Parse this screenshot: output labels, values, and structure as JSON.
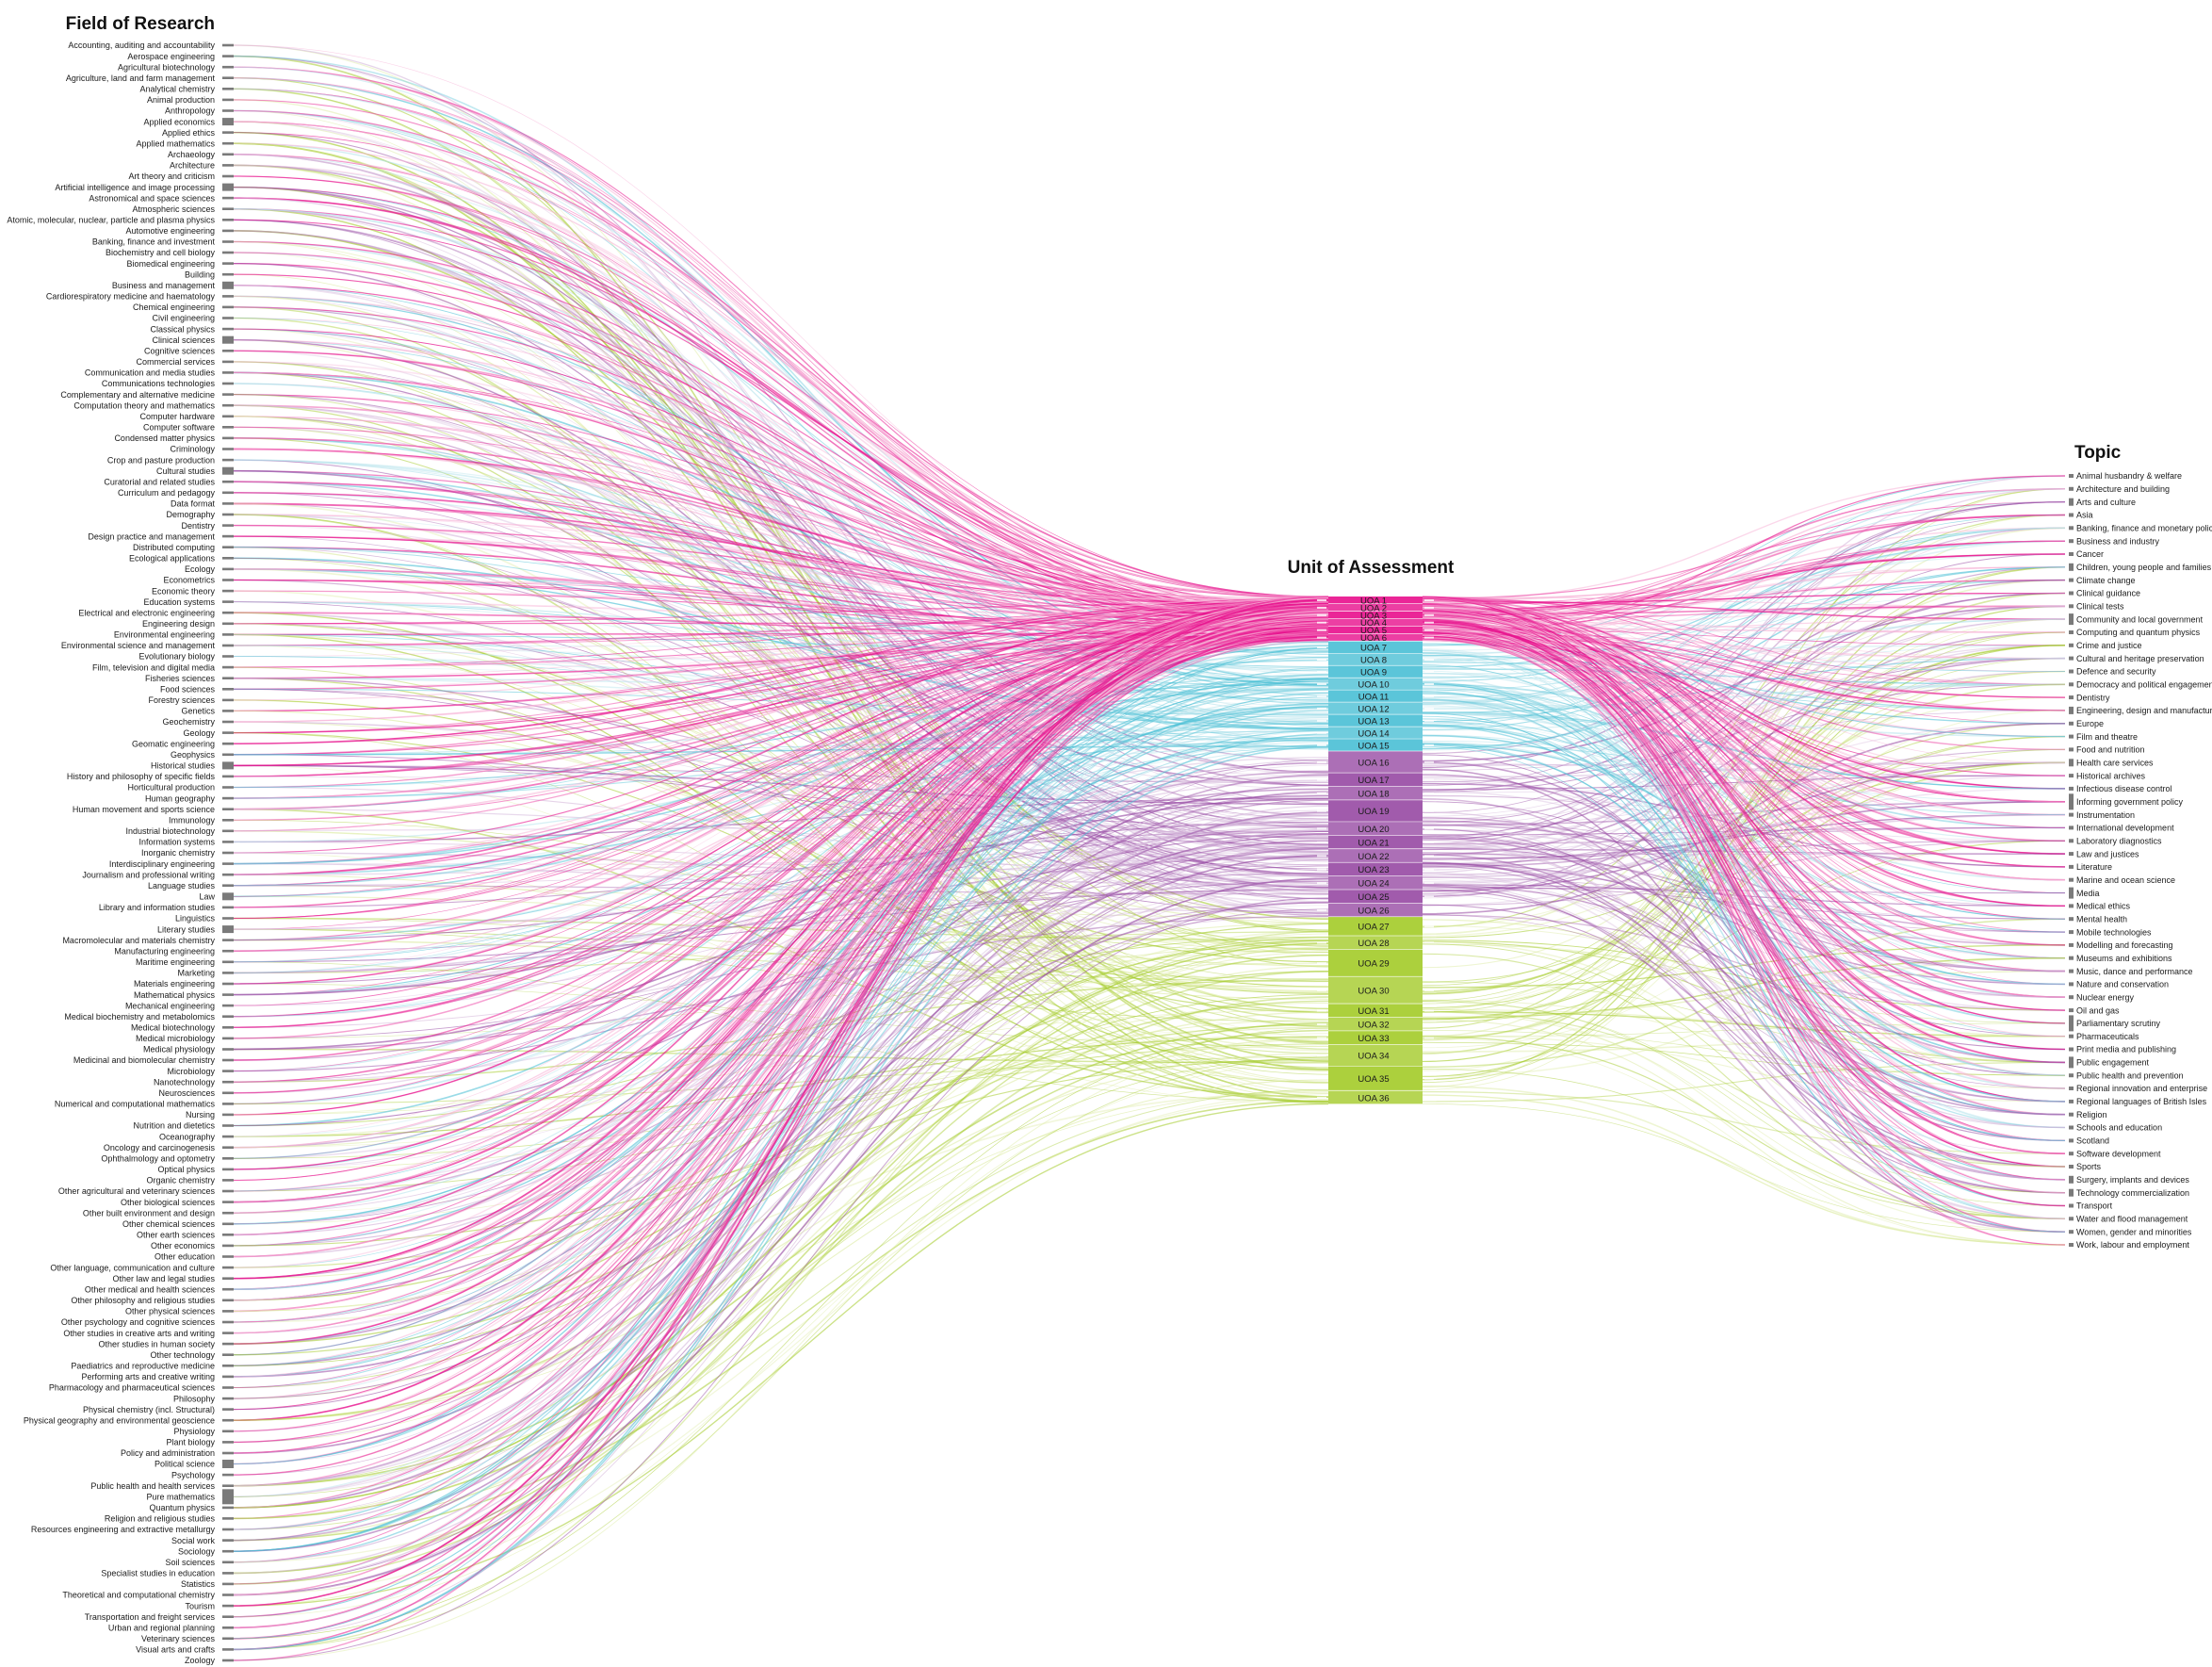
{
  "columns": {
    "left_title": "Field of Research",
    "middle_title": "Unit of Assessment",
    "right_title": "Topic"
  },
  "fields_of_research": [
    "Accounting, auditing and accountability",
    "Aerospace engineering",
    "Agricultural biotechnology",
    "Agriculture, land and farm management",
    "Analytical chemistry",
    "Animal production",
    "Anthropology",
    "Applied economics",
    "Applied ethics",
    "Applied mathematics",
    "Archaeology",
    "Architecture",
    "Art theory and criticism",
    "Artificial intelligence and image processing",
    "Astronomical and space sciences",
    "Atmospheric sciences",
    "Atomic, molecular, nuclear, particle and plasma physics",
    "Automotive engineering",
    "Banking, finance and investment",
    "Biochemistry and cell biology",
    "Biomedical engineering",
    "Building",
    "Business and management",
    "Cardiorespiratory medicine and haematology",
    "Chemical engineering",
    "Civil engineering",
    "Classical physics",
    "Clinical sciences",
    "Cognitive sciences",
    "Commercial services",
    "Communication and media studies",
    "Communications technologies",
    "Complementary and alternative medicine",
    "Computation theory and mathematics",
    "Computer hardware",
    "Computer software",
    "Condensed matter physics",
    "Criminology",
    "Crop and pasture production",
    "Cultural studies",
    "Curatorial and related studies",
    "Curriculum and pedagogy",
    "Data format",
    "Demography",
    "Dentistry",
    "Design practice and management",
    "Distributed computing",
    "Ecological applications",
    "Ecology",
    "Econometrics",
    "Economic theory",
    "Education systems",
    "Electrical and electronic engineering",
    "Engineering design",
    "Environmental engineering",
    "Environmental science and management",
    "Evolutionary biology",
    "Film, television and digital media",
    "Fisheries sciences",
    "Food sciences",
    "Forestry sciences",
    "Genetics",
    "Geochemistry",
    "Geology",
    "Geomatic engineering",
    "Geophysics",
    "Historical studies",
    "History and philosophy of specific fields",
    "Horticultural production",
    "Human geography",
    "Human movement and sports science",
    "Immunology",
    "Industrial biotechnology",
    "Information systems",
    "Inorganic chemistry",
    "Interdisciplinary engineering",
    "Journalism and professional writing",
    "Language studies",
    "Law",
    "Library and information studies",
    "Linguistics",
    "Literary studies",
    "Macromolecular and materials chemistry",
    "Manufacturing engineering",
    "Maritime engineering",
    "Marketing",
    "Materials engineering",
    "Mathematical physics",
    "Mechanical engineering",
    "Medical biochemistry and metabolomics",
    "Medical biotechnology",
    "Medical microbiology",
    "Medical physiology",
    "Medicinal and biomolecular chemistry",
    "Microbiology",
    "Nanotechnology",
    "Neurosciences",
    "Numerical and computational mathematics",
    "Nursing",
    "Nutrition and dietetics",
    "Oceanography",
    "Oncology and carcinogenesis",
    "Ophthalmology and optometry",
    "Optical physics",
    "Organic chemistry",
    "Other agricultural and veterinary sciences",
    "Other biological sciences",
    "Other built environment and design",
    "Other chemical sciences",
    "Other earth sciences",
    "Other economics",
    "Other education",
    "Other language, communication and culture",
    "Other law and legal studies",
    "Other medical and health sciences",
    "Other philosophy and religious studies",
    "Other physical sciences",
    "Other psychology and cognitive sciences",
    "Other studies in creative arts and writing",
    "Other studies in human society",
    "Other technology",
    "Paediatrics and reproductive medicine",
    "Performing arts and creative writing",
    "Pharmacology and pharmaceutical sciences",
    "Philosophy",
    "Physical chemistry (incl. Structural)",
    "Physical geography and environmental geoscience",
    "Physiology",
    "Plant biology",
    "Policy and administration",
    "Political science",
    "Psychology",
    "Public health and health services",
    "Pure mathematics",
    "Quantum physics",
    "Religion and religious studies",
    "Resources engineering and extractive metallurgy",
    "Social work",
    "Sociology",
    "Soil sciences",
    "Specialist studies in education",
    "Statistics",
    "Theoretical and computational chemistry",
    "Tourism",
    "Transportation and freight services",
    "Urban and regional planning",
    "Veterinary sciences",
    "Visual arts and crafts",
    "Zoology"
  ],
  "units_of_assessment": [
    "UOA 1",
    "UOA 2",
    "UOA 3",
    "UOA 4",
    "UOA 5",
    "UOA 6",
    "UOA 7",
    "UOA 8",
    "UOA 9",
    "UOA 10",
    "UOA 11",
    "UOA 12",
    "UOA 13",
    "UOA 14",
    "UOA 15",
    "UOA 16",
    "UOA 17",
    "UOA 18",
    "UOA 19",
    "UOA 20",
    "UOA 21",
    "UOA 22",
    "UOA 23",
    "UOA 24",
    "UOA 25",
    "UOA 26",
    "UOA 27",
    "UOA 28",
    "UOA 29",
    "UOA 30",
    "UOA 31",
    "UOA 32",
    "UOA 33",
    "UOA 34",
    "UOA 35",
    "UOA 36"
  ],
  "topics": [
    "Animal husbandry & welfare",
    "Architecture and building",
    "Arts and culture",
    "Asia",
    "Banking, finance and monetary policy",
    "Business and industry",
    "Cancer",
    "Children, young people and families",
    "Climate change",
    "Clinical guidance",
    "Clinical tests",
    "Community and local government",
    "Computing and quantum physics",
    "Crime and justice",
    "Cultural and heritage preservation",
    "Defence and security",
    "Democracy and political engagement",
    "Dentistry",
    "Engineering, design and manufacturing",
    "Europe",
    "Film and theatre",
    "Food and nutrition",
    "Health care services",
    "Historical archives",
    "Infectious disease control",
    "Informing government policy",
    "Instrumentation",
    "International development",
    "Laboratory diagnostics",
    "Law and justices",
    "Literature",
    "Marine and ocean science",
    "Media",
    "Medical ethics",
    "Mental health",
    "Mobile technologies",
    "Modelling and forecasting",
    "Museums and exhibitions",
    "Music, dance and performance",
    "Nature and conservation",
    "Nuclear energy",
    "Oil and gas",
    "Parliamentary scrutiny",
    "Pharmaceuticals",
    "Print media and publishing",
    "Public engagement",
    "Public health and prevention",
    "Regional innovation and enterprise",
    "Regional languages of British Isles",
    "Religion",
    "Schools and education",
    "Scotland",
    "Software development",
    "Sports",
    "Surgery, implants and devices",
    "Technology commercialization",
    "Transport",
    "Water and flood management",
    "Women, gender and minorities",
    "Work, labour and employment"
  ],
  "colors": {
    "panel_1": "#e8158f",
    "panel_2": "#4fc1d6",
    "panel_3": "#9a4fa6",
    "panel_4": "#a6cc2e",
    "node_bar": "#7a7a7a"
  }
}
